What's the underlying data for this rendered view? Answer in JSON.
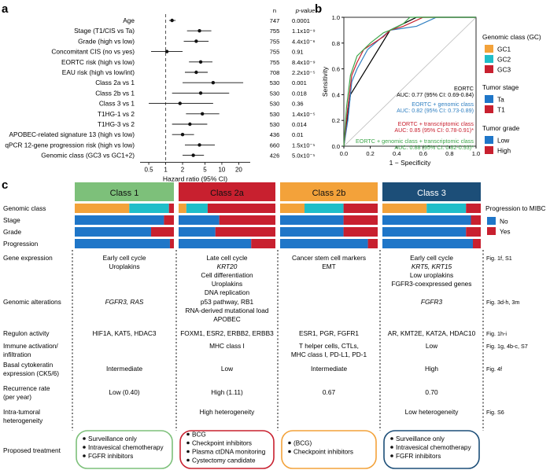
{
  "panels": {
    "a": "a",
    "b": "b",
    "c": "c"
  },
  "chart_data": [
    {
      "type": "forest",
      "panel": "a",
      "xlabel": "Hazard ratio (95% CI)",
      "xscale": "log",
      "xlim": [
        0.35,
        32
      ],
      "xticks": [
        0.5,
        1,
        2,
        5,
        10,
        20
      ],
      "xtick_labels": [
        "0.5",
        "1",
        "2",
        "5",
        "10",
        "20"
      ],
      "reference_line": 1,
      "col_n_header": "n",
      "col_p_header": "p-value",
      "rows": [
        {
          "label": "Age",
          "hr": 1.3,
          "lo": 1.15,
          "hi": 1.5,
          "n": "747",
          "p": "0.0001"
        },
        {
          "label": "Stage (T1/CIS vs Ta)",
          "hr": 4.0,
          "lo": 2.4,
          "hi": 6.5,
          "n": "755",
          "p": "1.1x10⁻⁹"
        },
        {
          "label": "Grade (high vs low)",
          "hr": 3.5,
          "lo": 2.1,
          "hi": 5.8,
          "n": "755",
          "p": "4.4x10⁻⁶"
        },
        {
          "label": "Concomitant CIS (no vs yes)",
          "hr": 1.05,
          "lo": 0.55,
          "hi": 2.0,
          "n": "755",
          "p": "0.91"
        },
        {
          "label": "EORTC risk (high vs low)",
          "hr": 4.2,
          "lo": 2.6,
          "hi": 6.8,
          "n": "755",
          "p": "8.4x10⁻⁹"
        },
        {
          "label": "EAU risk (high vs low/int)",
          "hr": 3.5,
          "lo": 2.2,
          "hi": 5.6,
          "n": "708",
          "p": "2.2x10⁻⁵"
        },
        {
          "label": "Class 2a vs 1",
          "hr": 7.0,
          "lo": 2.0,
          "hi": 24.0,
          "n": "530",
          "p": "0.001"
        },
        {
          "label": "Class 2b vs 1",
          "hr": 4.2,
          "lo": 1.3,
          "hi": 13.5,
          "n": "530",
          "p": "0.018"
        },
        {
          "label": "Class 3 vs 1",
          "hr": 1.8,
          "lo": 0.5,
          "hi": 7.0,
          "n": "530",
          "p": "0.36"
        },
        {
          "label": "T1HG-1 vs 2",
          "hr": 4.5,
          "lo": 2.3,
          "hi": 9.0,
          "n": "530",
          "p": "1.4x10⁻⁵"
        },
        {
          "label": "T1HG-3 vs 2",
          "hr": 2.7,
          "lo": 1.3,
          "hi": 5.5,
          "n": "530",
          "p": "0.014"
        },
        {
          "label": "APOBEC-related signature 13 (high vs low)",
          "hr": 2.0,
          "lo": 1.3,
          "hi": 3.2,
          "n": "436",
          "p": "0.01"
        },
        {
          "label": "qPCR 12-gene progression risk (high vs low)",
          "hr": 4.0,
          "lo": 2.2,
          "hi": 7.5,
          "n": "660",
          "p": "1.5x10⁻⁵"
        },
        {
          "label": "Genomic class (GC3 vs GC1+2)",
          "hr": 3.1,
          "lo": 2.0,
          "hi": 4.8,
          "n": "426",
          "p": "5.0x10⁻⁵"
        }
      ]
    },
    {
      "type": "roc",
      "panel": "b",
      "xlabel": "1 − Specificity",
      "ylabel": "Sensitivity",
      "xlim": [
        0,
        1
      ],
      "ylim": [
        0,
        1
      ],
      "ticks": [
        0,
        0.2,
        0.4,
        0.6,
        0.8,
        1
      ],
      "tick_labels": [
        "0.0",
        "0.2",
        "0.4",
        "0.6",
        "0.8",
        "1.0"
      ],
      "series": [
        {
          "name": "EORTC",
          "auc": "AUC: 0.77 (95% CI: 0.69-0.84)",
          "color": "#000000",
          "x": [
            0,
            0.05,
            0.35,
            0.55,
            1.0
          ],
          "y": [
            0,
            0.4,
            0.9,
            1.0,
            1.0
          ]
        },
        {
          "name": "EORTC + genomic class",
          "auc": "AUC: 0.82 (95% CI: 0.73-0.89)",
          "color": "#2f7fc1",
          "x": [
            0,
            0.03,
            0.06,
            0.1,
            0.18,
            0.35,
            0.55,
            0.7,
            1.0
          ],
          "y": [
            0,
            0.2,
            0.5,
            0.6,
            0.75,
            0.9,
            0.93,
            1.0,
            1.0
          ]
        },
        {
          "name": "EORTC + transcriptomic class",
          "auc": "AUC: 0.85 (95% CI: 0.78-0.91)*",
          "color": "#c8202f",
          "x": [
            0,
            0.03,
            0.06,
            0.1,
            0.15,
            0.3,
            0.35,
            0.45,
            0.6,
            1.0
          ],
          "y": [
            0,
            0.3,
            0.55,
            0.65,
            0.75,
            0.85,
            0.9,
            0.93,
            1.0,
            1.0
          ]
        },
        {
          "name": "EORTC + genomic class + transcriptomic class",
          "auc": "AUC: 0.88 (95% CI: 0.82-0.93)*",
          "color": "#3da64a",
          "x": [
            0,
            0.02,
            0.05,
            0.1,
            0.15,
            0.2,
            0.3,
            0.35,
            0.45,
            0.5,
            1.0
          ],
          "y": [
            0,
            0.3,
            0.55,
            0.7,
            0.75,
            0.8,
            0.88,
            0.9,
            0.95,
            1.0,
            1.0
          ]
        }
      ]
    }
  ],
  "legends": {
    "genomic_title": "Genomic class (GC)",
    "genomic_items": [
      {
        "label": "GC1",
        "color": "#f3a23a"
      },
      {
        "label": "GC2",
        "color": "#1fbec9"
      },
      {
        "label": "GC3",
        "color": "#c8202f"
      }
    ],
    "stage_title": "Tumor stage",
    "stage_items": [
      {
        "label": "Ta",
        "color": "#1f76c8"
      },
      {
        "label": "T1",
        "color": "#c8202f"
      }
    ],
    "grade_title": "Tumor grade",
    "grade_items": [
      {
        "label": "Low",
        "color": "#1f76c8"
      },
      {
        "label": "High",
        "color": "#c8202f"
      }
    ],
    "progression_title": "Progression to MIBC",
    "progression_items": [
      {
        "label": "No",
        "color": "#1f76c8"
      },
      {
        "label": "Yes",
        "color": "#c8202f"
      }
    ]
  },
  "panel_c": {
    "classes": [
      {
        "name": "Class 1",
        "color": "#7dc07a",
        "textcolor": "#111111",
        "boxcolor": "#7dc07a",
        "genomic": [
          0.55,
          0.4,
          0.05
        ],
        "stage_t1": 0.1,
        "grade_high": 0.23,
        "progression_yes": 0.04,
        "gene_expression": [
          "Early cell cycle",
          "Uroplakins"
        ],
        "genomic_alterations": [
          "FGFR3, RAS"
        ],
        "regulon": "HIF1A, KAT5, HDAC3",
        "immune": "",
        "ck": "Intermediate",
        "recurrence": "Low (0.40)",
        "heterogeneity": "",
        "treatment": [
          "Surveillance only",
          "Intravesical chemotherapy",
          "FGFR inhibitors"
        ]
      },
      {
        "name": "Class 2a",
        "color": "#c8202f",
        "textcolor": "#111111",
        "boxcolor": "#c8202f",
        "genomic": [
          0.08,
          0.22,
          0.7
        ],
        "stage_t1": 0.58,
        "grade_high": 0.62,
        "progression_yes": 0.25,
        "gene_expression": [
          "Late cell cycle",
          "KRT20",
          "Cell differentiation",
          "Uroplakins",
          "DNA replication"
        ],
        "genomic_alterations": [
          "p53 pathway, RB1",
          "RNA-derived mutational load",
          "APOBEC"
        ],
        "regulon": "FOXM1, ESR2, ERBB2, ERBB3",
        "immune": "MHC class I",
        "ck": "Low",
        "recurrence": "High (1.11)",
        "heterogeneity": "High heterogeneity",
        "treatment": [
          "BCG",
          "Checkpoint inhibitors",
          "Plasma ctDNA monitoring",
          "Cystectomy candidate"
        ]
      },
      {
        "name": "Class 2b",
        "color": "#f3a23a",
        "textcolor": "#111111",
        "boxcolor": "#f3a23a",
        "genomic": [
          0.25,
          0.4,
          0.35
        ],
        "stage_t1": 0.35,
        "grade_high": 0.35,
        "progression_yes": 0.1,
        "gene_expression": [
          "Cancer stem cell markers",
          "EMT"
        ],
        "genomic_alterations": [],
        "regulon": "ESR1, PGR, FGFR1",
        "immune": "T helper cells, CTLs, MHC class I, PD-L1, PD-1",
        "ck": "Intermediate",
        "recurrence": "0.67",
        "heterogeneity": "",
        "treatment": [
          "(BCG)",
          "Checkpoint inhibitors"
        ]
      },
      {
        "name": "Class 3",
        "color": "#1c4e78",
        "textcolor": "#ffffff",
        "boxcolor": "#1c4e78",
        "genomic": [
          0.45,
          0.4,
          0.15
        ],
        "stage_t1": 0.1,
        "grade_high": 0.15,
        "progression_yes": 0.08,
        "gene_expression": [
          "Early cell cycle",
          "KRT5, KRT15",
          "Low uroplakins",
          "FGFR3-coexpressed genes"
        ],
        "genomic_alterations": [
          "FGFR3"
        ],
        "regulon": "AR, KMT2E, KAT2A, HDAC10",
        "immune": "Low",
        "ck": "High",
        "recurrence": "0.70",
        "heterogeneity": "Low heterogeneity",
        "treatment": [
          "Surveillance only",
          "Intravesical chemotherapy",
          "FGFR inhibitors"
        ]
      }
    ],
    "bar_labels": [
      "Genomic class",
      "Stage",
      "Grade",
      "Progression"
    ],
    "row_labels": {
      "gene_expression": "Gene expression",
      "genomic_alterations": "Genomic alterations",
      "regulon": "Regulon activity",
      "immune": [
        "Immune activation/",
        "infiltration"
      ],
      "ck": [
        "Basal cytokeratin",
        "expression (CK5/6)"
      ],
      "recurrence": [
        "Recurrence rate",
        "(per year)"
      ],
      "heterogeneity": [
        "Intra-tumoral",
        "heterogeneity"
      ],
      "treatment": "Proposed treatment"
    },
    "figrefs": {
      "gene_expression": "Fig. 1f, S1",
      "genomic_alterations": "Fig. 3d-h, 3m",
      "regulon": "Fig. 1h-i",
      "immune": "Fig. 1g, 4b-c, S7",
      "ck": "Fig. 4f",
      "heterogeneity": "Fig. S6"
    }
  }
}
